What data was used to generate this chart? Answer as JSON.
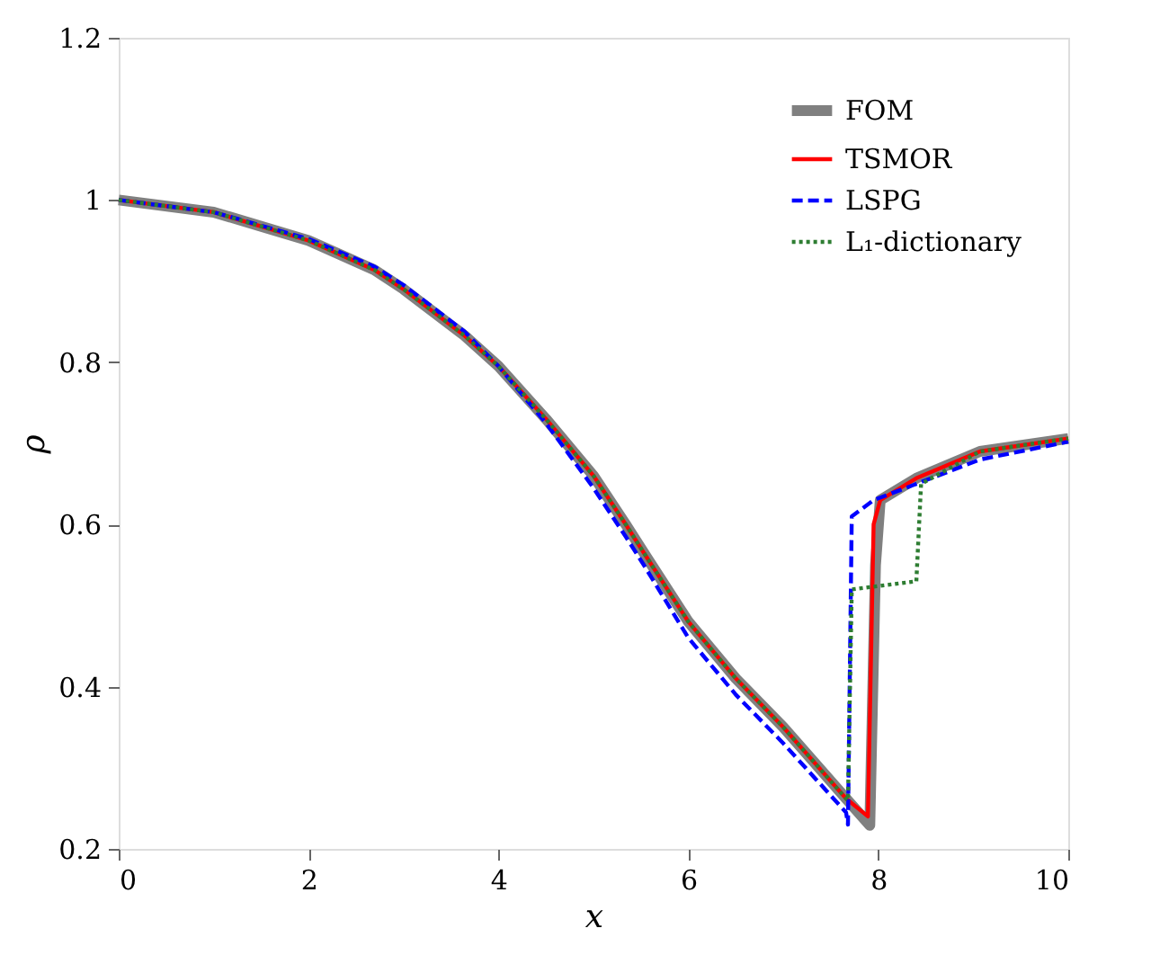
{
  "chart_data": {
    "type": "line",
    "xlabel": "x",
    "ylabel": "ρ",
    "xlim": [
      0,
      10
    ],
    "ylim": [
      0.2,
      1.2
    ],
    "xticks": [
      0,
      2,
      4,
      6,
      8,
      10
    ],
    "yticks": [
      0.2,
      0.4,
      0.6,
      0.8,
      1,
      1.2
    ],
    "grid": false,
    "legend": "top right",
    "marker": "none",
    "series": [
      {
        "name": "FOM",
        "color": "#808080",
        "line_style": "solid",
        "x": [
          0,
          1,
          2,
          2.69,
          3,
          3.64,
          4,
          4.5,
          5,
          5.34,
          5.53,
          6,
          6.5,
          7,
          7.66,
          7.91,
          7.97,
          8.02,
          8.4,
          9.07,
          10
        ],
        "values": [
          1.0,
          0.985,
          0.95,
          0.914,
          0.89,
          0.833,
          0.795,
          0.73,
          0.66,
          0.6,
          0.565,
          0.48,
          0.41,
          0.35,
          0.262,
          0.229,
          0.55,
          0.63,
          0.657,
          0.69,
          0.706
        ]
      },
      {
        "name": "TSMOR",
        "color": "#ff0000",
        "line_style": "solid",
        "x": [
          0,
          1,
          2,
          2.69,
          3,
          3.64,
          4,
          4.5,
          5,
          5.34,
          5.53,
          6,
          6.5,
          7,
          7.66,
          7.89,
          7.95,
          8.02,
          8.4,
          9.07,
          10
        ],
        "values": [
          1.0,
          0.985,
          0.95,
          0.914,
          0.89,
          0.833,
          0.795,
          0.73,
          0.66,
          0.6,
          0.565,
          0.48,
          0.41,
          0.35,
          0.262,
          0.24,
          0.6,
          0.63,
          0.657,
          0.69,
          0.706
        ]
      },
      {
        "name": "LSPG",
        "color": "#0000ff",
        "line_style": "dashed",
        "x": [
          0,
          1,
          2,
          2.69,
          3,
          3.64,
          4,
          4.5,
          5,
          5.34,
          5.53,
          6,
          6.5,
          7,
          7.66,
          7.68,
          7.72,
          7.95,
          8.4,
          9.07,
          10
        ],
        "values": [
          1.0,
          0.985,
          0.952,
          0.918,
          0.895,
          0.838,
          0.795,
          0.725,
          0.645,
          0.585,
          0.55,
          0.46,
          0.39,
          0.33,
          0.245,
          0.23,
          0.61,
          0.63,
          0.65,
          0.68,
          0.702
        ]
      },
      {
        "name": "L₁-dictionary",
        "color": "#2e7d32",
        "line_style": "dotted",
        "x": [
          0,
          1,
          2,
          2.69,
          3,
          3.64,
          4,
          4.5,
          5,
          5.34,
          5.53,
          6,
          6.5,
          7,
          7.66,
          7.68,
          7.72,
          8.4,
          8.45,
          9.07,
          10
        ],
        "values": [
          1.0,
          0.985,
          0.95,
          0.914,
          0.89,
          0.833,
          0.795,
          0.73,
          0.66,
          0.6,
          0.565,
          0.48,
          0.41,
          0.35,
          0.262,
          0.26,
          0.52,
          0.53,
          0.65,
          0.69,
          0.706
        ]
      }
    ]
  }
}
